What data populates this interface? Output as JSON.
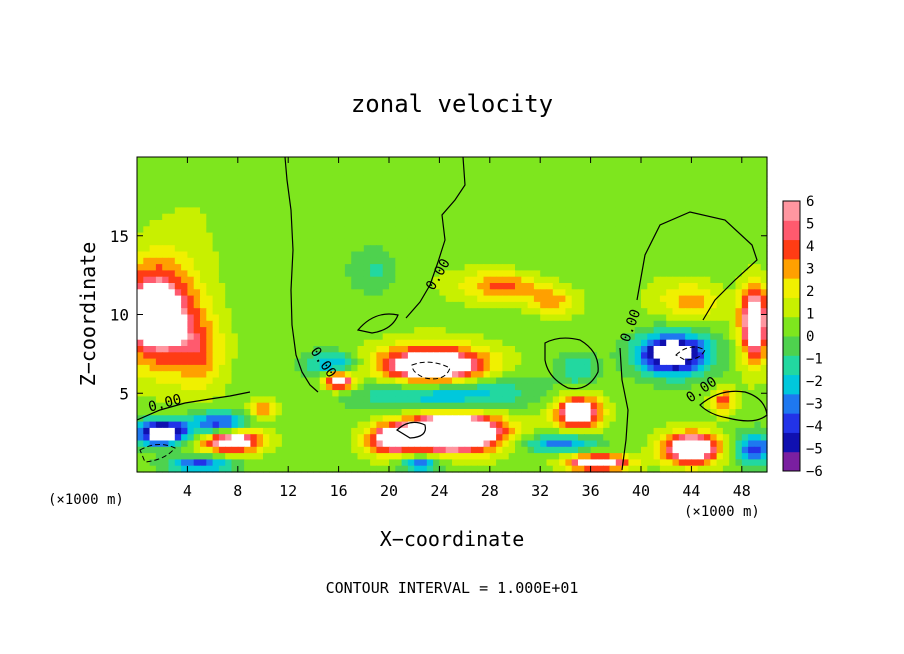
{
  "chart_data": {
    "type": "heatmap",
    "title": "zonal velocity",
    "xlabel": "X−coordinate",
    "ylabel": "Z−coordinate",
    "x_unit_left": "(×1000 m)",
    "x_unit_right": "(×1000 m)",
    "footer": "CONTOUR INTERVAL = 1.000E+01",
    "xlim": [
      0,
      50
    ],
    "ylim": [
      0,
      20
    ],
    "x_ticks": [
      4,
      8,
      12,
      16,
      20,
      24,
      28,
      32,
      36,
      40,
      44,
      48
    ],
    "y_ticks": [
      5,
      10,
      15
    ],
    "colorbar": {
      "min": -6,
      "max": 6,
      "tick_values": [
        6,
        5,
        4,
        3,
        2,
        1,
        0,
        -1,
        -2,
        -3,
        -4,
        -5,
        -6
      ],
      "tick_labels": [
        "6",
        "5",
        "4",
        "3",
        "2",
        "1",
        "0",
        "−1",
        "−2",
        "−3",
        "−4",
        "−5",
        "−6"
      ],
      "over_color": "#ffffff",
      "under_color": "#ffffff"
    },
    "contour_labels": [
      {
        "text": "0.00",
        "x": 24.2,
        "y": 12.4,
        "rot": -60
      },
      {
        "text": "0.00",
        "x": 14.5,
        "y": 6.8,
        "rot": 55
      },
      {
        "text": "0.00",
        "x": 2.3,
        "y": 4.1,
        "rot": -15
      },
      {
        "text": "0.00",
        "x": 39.5,
        "y": 9.2,
        "rot": -70
      },
      {
        "text": "0.00",
        "x": 45.0,
        "y": 5.0,
        "rot": -35
      }
    ],
    "features": [
      {
        "x": 1.5,
        "z": 10.0,
        "sx": 3.0,
        "sz": 3.2,
        "v": 8
      },
      {
        "x": 5.0,
        "z": 7.5,
        "sx": 2.0,
        "sz": 2.5,
        "v": 3
      },
      {
        "x": 2.0,
        "z": 2.5,
        "sx": 2.0,
        "sz": 0.8,
        "v": -9
      },
      {
        "x": 6.5,
        "z": 3.0,
        "sx": 2.2,
        "sz": 0.8,
        "v": -6
      },
      {
        "x": 7.5,
        "z": 2.0,
        "sx": 2.5,
        "sz": 0.8,
        "v": 8
      },
      {
        "x": 10.0,
        "z": 4.0,
        "sx": 1.2,
        "sz": 0.6,
        "v": 4
      },
      {
        "x": 5.0,
        "z": 0.5,
        "sx": 2.5,
        "sz": 0.5,
        "v": -5
      },
      {
        "x": 16.0,
        "z": 5.8,
        "sx": 1.2,
        "sz": 0.6,
        "v": 8
      },
      {
        "x": 15.5,
        "z": 6.8,
        "sx": 2.0,
        "sz": 0.8,
        "v": -4
      },
      {
        "x": 23.5,
        "z": 6.5,
        "sx": 4.5,
        "sz": 1.4,
        "v": 10
      },
      {
        "x": 24.0,
        "z": 5.2,
        "sx": 6.0,
        "sz": 1.2,
        "v": -6
      },
      {
        "x": 25.0,
        "z": 2.5,
        "sx": 4.0,
        "sz": 1.2,
        "v": 12
      },
      {
        "x": 20.0,
        "z": 2.0,
        "sx": 2.0,
        "sz": 1.0,
        "v": 5
      },
      {
        "x": 22.5,
        "z": 0.5,
        "sx": 1.5,
        "sz": 0.5,
        "v": -5
      },
      {
        "x": 29.0,
        "z": 11.8,
        "sx": 3.2,
        "sz": 1.0,
        "v": 4
      },
      {
        "x": 33.0,
        "z": 10.8,
        "sx": 2.0,
        "sz": 0.9,
        "v": 3
      },
      {
        "x": 19.0,
        "z": 12.8,
        "sx": 1.8,
        "sz": 1.5,
        "v": -1.8
      },
      {
        "x": 35.0,
        "z": 3.8,
        "sx": 1.8,
        "sz": 1.0,
        "v": 8
      },
      {
        "x": 33.5,
        "z": 1.8,
        "sx": 3.0,
        "sz": 0.6,
        "v": -4
      },
      {
        "x": 35.0,
        "z": 6.5,
        "sx": 1.5,
        "sz": 1.0,
        "v": -2.5
      },
      {
        "x": 36.5,
        "z": 0.6,
        "sx": 2.5,
        "sz": 0.5,
        "v": 8
      },
      {
        "x": 42.5,
        "z": 7.5,
        "sx": 2.8,
        "sz": 1.3,
        "v": -9
      },
      {
        "x": 44.0,
        "z": 10.8,
        "sx": 2.5,
        "sz": 1.2,
        "v": 3
      },
      {
        "x": 49.0,
        "z": 9.5,
        "sx": 1.2,
        "sz": 2.5,
        "v": 8
      },
      {
        "x": 46.5,
        "z": 4.5,
        "sx": 1.0,
        "sz": 0.8,
        "v": 4
      },
      {
        "x": 44.0,
        "z": 1.5,
        "sx": 2.2,
        "sz": 1.0,
        "v": 9
      },
      {
        "x": 49.0,
        "z": 1.5,
        "sx": 1.5,
        "sz": 1.0,
        "v": -5
      }
    ]
  }
}
